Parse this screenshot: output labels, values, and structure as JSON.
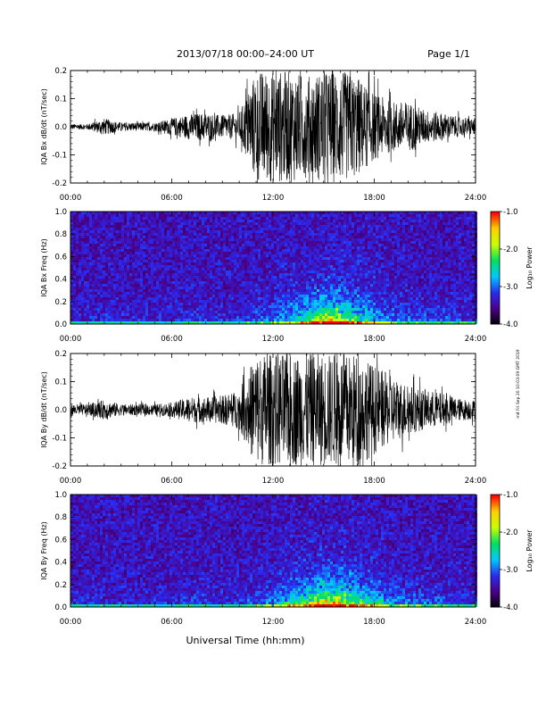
{
  "header": {
    "title": "2013/07/18  00:00–24:00 UT",
    "page": "Page 1/1"
  },
  "footer": {
    "xlabel": "Universal Time (hh:mm)",
    "side_stamp": "mit Fri Sep 20 10:03:09 GMT 2019"
  },
  "colorbar": {
    "label": "Log₁₀ Power",
    "ticks": [
      "-1.0",
      "-2.0",
      "-3.0",
      "-4.0"
    ],
    "range": [
      -4.0,
      -1.0
    ],
    "colormap": [
      "#000000",
      "#4b0088",
      "#2a2af0",
      "#00c8ff",
      "#00e060",
      "#c8ff00",
      "#ffd000",
      "#ff0000"
    ]
  },
  "time_ticks": [
    "00:00",
    "06:00",
    "12:00",
    "18:00",
    "24:00"
  ],
  "chart_data": [
    {
      "type": "line",
      "panel": "bx_wave",
      "ylabel": "IQA Bx dB/dt (nT/sec)",
      "yticks": [
        "0.2",
        "0.1",
        "0.0",
        "-0.1",
        "-0.2"
      ],
      "xlim": [
        0,
        24
      ],
      "ylim": [
        -0.2,
        0.2
      ],
      "envelope": {
        "x": [
          0,
          1,
          2,
          3,
          4,
          5,
          6,
          7,
          8,
          9,
          10,
          11,
          12,
          13,
          14,
          15,
          16,
          17,
          18,
          19,
          20,
          21,
          22,
          23,
          24
        ],
        "y": [
          0.01,
          0.01,
          0.03,
          0.015,
          0.015,
          0.015,
          0.03,
          0.045,
          0.05,
          0.04,
          0.05,
          0.2,
          0.2,
          0.2,
          0.18,
          0.2,
          0.2,
          0.18,
          0.12,
          0.09,
          0.09,
          0.06,
          0.05,
          0.035,
          0.03
        ]
      }
    },
    {
      "type": "heatmap",
      "panel": "bx_spec",
      "ylabel": "IQA Bx Freq (Hz)",
      "yticks": [
        "1.0",
        "0.8",
        "0.6",
        "0.4",
        "0.2",
        "0.0"
      ],
      "xlim": [
        0,
        24
      ],
      "ylim": [
        0.0,
        1.0
      ],
      "activity": {
        "x": [
          0,
          2,
          4,
          6,
          7,
          9,
          10,
          11,
          12,
          13,
          14,
          15,
          16,
          17,
          18,
          19,
          20,
          22,
          24
        ],
        "y": [
          0.05,
          0.07,
          0.05,
          0.06,
          0.1,
          0.07,
          0.1,
          0.2,
          0.25,
          0.35,
          0.55,
          0.8,
          0.75,
          0.5,
          0.35,
          0.25,
          0.2,
          0.15,
          0.1
        ]
      }
    },
    {
      "type": "line",
      "panel": "by_wave",
      "ylabel": "IQA By dB/dt (nT/sec)",
      "yticks": [
        "0.2",
        "0.1",
        "0.0",
        "-0.1",
        "-0.2"
      ],
      "xlim": [
        0,
        24
      ],
      "ylim": [
        -0.2,
        0.2
      ],
      "envelope": {
        "x": [
          0,
          1,
          2,
          3,
          4,
          5,
          6,
          7,
          8,
          9,
          10,
          11,
          12,
          13,
          14,
          15,
          16,
          17,
          18,
          19,
          20,
          21,
          22,
          23,
          24
        ],
        "y": [
          0.02,
          0.02,
          0.035,
          0.02,
          0.02,
          0.02,
          0.025,
          0.045,
          0.045,
          0.05,
          0.07,
          0.2,
          0.2,
          0.2,
          0.2,
          0.2,
          0.2,
          0.2,
          0.16,
          0.12,
          0.09,
          0.07,
          0.06,
          0.04,
          0.035
        ]
      }
    },
    {
      "type": "heatmap",
      "panel": "by_spec",
      "ylabel": "IQA By Freq (Hz)",
      "yticks": [
        "1.0",
        "0.8",
        "0.6",
        "0.4",
        "0.2",
        "0.0"
      ],
      "xlim": [
        0,
        24
      ],
      "ylim": [
        0.0,
        1.0
      ],
      "activity": {
        "x": [
          0,
          2,
          4,
          6,
          7,
          9,
          10,
          11,
          12,
          13,
          14,
          15,
          16,
          17,
          18,
          19,
          20,
          22,
          24
        ],
        "y": [
          0.06,
          0.08,
          0.06,
          0.07,
          0.12,
          0.08,
          0.12,
          0.22,
          0.28,
          0.38,
          0.6,
          0.85,
          0.8,
          0.55,
          0.4,
          0.28,
          0.22,
          0.16,
          0.1
        ]
      }
    }
  ]
}
